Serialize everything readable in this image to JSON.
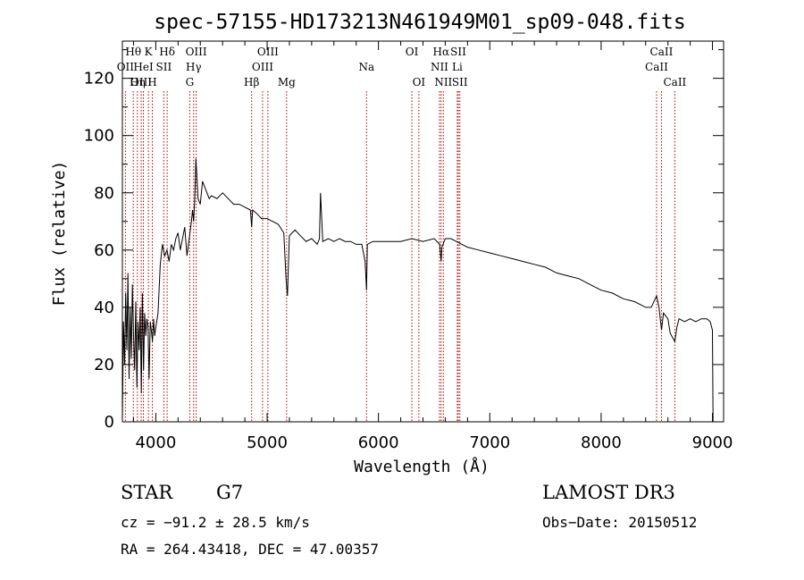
{
  "chart_data": {
    "type": "line",
    "title": "spec-57155-HD173213N461949M01_sp09-048.fits",
    "xlabel": "Wavelength (Å)",
    "ylabel": "Flux (relative)",
    "xlim": [
      3700,
      9100
    ],
    "ylim": [
      0,
      133
    ],
    "xticks": [
      4000,
      5000,
      6000,
      7000,
      8000,
      9000
    ],
    "yticks": [
      0,
      20,
      40,
      60,
      80,
      100,
      120
    ],
    "series": [
      {
        "name": "flux",
        "x": [
          3700,
          3710,
          3720,
          3730,
          3740,
          3750,
          3760,
          3770,
          3780,
          3790,
          3800,
          3810,
          3820,
          3830,
          3840,
          3850,
          3860,
          3870,
          3880,
          3890,
          3900,
          3910,
          3920,
          3930,
          3940,
          3950,
          3960,
          3970,
          3980,
          3990,
          4000,
          4020,
          4040,
          4060,
          4080,
          4100,
          4120,
          4140,
          4160,
          4180,
          4200,
          4220,
          4240,
          4260,
          4280,
          4300,
          4320,
          4330,
          4340,
          4350,
          4360,
          4380,
          4400,
          4420,
          4440,
          4460,
          4480,
          4500,
          4550,
          4600,
          4650,
          4700,
          4750,
          4800,
          4850,
          4861,
          4870,
          4900,
          4950,
          5000,
          5050,
          5100,
          5150,
          5170,
          5183,
          5200,
          5250,
          5300,
          5350,
          5400,
          5450,
          5470,
          5480,
          5500,
          5550,
          5600,
          5650,
          5700,
          5750,
          5800,
          5850,
          5880,
          5893,
          5900,
          5950,
          6000,
          6100,
          6200,
          6300,
          6400,
          6500,
          6550,
          6563,
          6570,
          6600,
          6650,
          6700,
          6750,
          6800,
          6900,
          7000,
          7100,
          7200,
          7300,
          7400,
          7500,
          7600,
          7700,
          7800,
          7900,
          8000,
          8100,
          8200,
          8300,
          8400,
          8450,
          8498,
          8520,
          8542,
          8560,
          8600,
          8620,
          8662,
          8680,
          8700,
          8750,
          8800,
          8850,
          8900,
          8950,
          8980,
          9000,
          9005
        ],
        "y": [
          0,
          35,
          20,
          45,
          25,
          52,
          15,
          40,
          22,
          48,
          30,
          18,
          42,
          12,
          35,
          25,
          40,
          10,
          45,
          18,
          38,
          30,
          36,
          33,
          15,
          35,
          32,
          28,
          36,
          30,
          33,
          38,
          55,
          62,
          58,
          60,
          56,
          62,
          60,
          64,
          66,
          60,
          64,
          68,
          58,
          64,
          70,
          74,
          70,
          78,
          92,
          78,
          76,
          84,
          82,
          80,
          78,
          79,
          78,
          80,
          78,
          76,
          76,
          75,
          74,
          68,
          74,
          73,
          71,
          71,
          70,
          69,
          66,
          50,
          44,
          65,
          67,
          65,
          63,
          64,
          62,
          64,
          80,
          63,
          64,
          63,
          64,
          63,
          63,
          62,
          62,
          56,
          46,
          62,
          63,
          63,
          63,
          63,
          64,
          63,
          64,
          62,
          56,
          61,
          64,
          64,
          63,
          62,
          61,
          60,
          59,
          58,
          57,
          56,
          55,
          54,
          52,
          51,
          50,
          48,
          46,
          45,
          43,
          42,
          40,
          40,
          44,
          40,
          32,
          38,
          36,
          31,
          28,
          33,
          36,
          35,
          36,
          35,
          36,
          36,
          35,
          32,
          0
        ]
      }
    ],
    "line_markers": [
      {
        "label": "Hθ",
        "wavelength": 3798,
        "row": 0
      },
      {
        "label": "K",
        "wavelength": 3934,
        "row": 0
      },
      {
        "label": "Hδ",
        "wavelength": 4102,
        "row": 0
      },
      {
        "label": "OIII",
        "wavelength": 4363,
        "row": 0
      },
      {
        "label": "OIII",
        "wavelength": 5007,
        "row": 0
      },
      {
        "label": "OI",
        "wavelength": 6300,
        "row": 0
      },
      {
        "label": "Hα",
        "wavelength": 6563,
        "row": 0
      },
      {
        "label": "SII",
        "wavelength": 6717,
        "row": 0
      },
      {
        "label": "CaII",
        "wavelength": 8542,
        "row": 0
      },
      {
        "label": "OII",
        "wavelength": 3727,
        "row": 1
      },
      {
        "label": "HeI",
        "wavelength": 3889,
        "row": 1
      },
      {
        "label": "SII",
        "wavelength": 4072,
        "row": 1
      },
      {
        "label": "Hγ",
        "wavelength": 4340,
        "row": 1
      },
      {
        "label": "OIII",
        "wavelength": 4959,
        "row": 1
      },
      {
        "label": "Na",
        "wavelength": 5893,
        "row": 1
      },
      {
        "label": "NII",
        "wavelength": 6548,
        "row": 1
      },
      {
        "label": "Li",
        "wavelength": 6708,
        "row": 1
      },
      {
        "label": "CaII",
        "wavelength": 8498,
        "row": 1
      },
      {
        "label": "OIII",
        "wavelength": 3869,
        "row": 2
      },
      {
        "label": "Hη",
        "wavelength": 3835,
        "row": 2
      },
      {
        "label": "H",
        "wavelength": 3969,
        "row": 2
      },
      {
        "label": "G",
        "wavelength": 4305,
        "row": 2
      },
      {
        "label": "Hβ",
        "wavelength": 4861,
        "row": 2
      },
      {
        "label": "Mg",
        "wavelength": 5175,
        "row": 2
      },
      {
        "label": "OI",
        "wavelength": 6363,
        "row": 2
      },
      {
        "label": "NII",
        "wavelength": 6583,
        "row": 2
      },
      {
        "label": "SII",
        "wavelength": 6731,
        "row": 2
      },
      {
        "label": "CaII",
        "wavelength": 8662,
        "row": 2
      }
    ]
  },
  "info": {
    "object_class": "STAR",
    "subclass": "G7",
    "survey": "LAMOST DR3",
    "redshift_line": "cz = −91.2 ± 28.5 km/s",
    "obs_date": "Obs−Date: 20150512",
    "coords": "RA = 264.43418, DEC =  47.00357"
  }
}
